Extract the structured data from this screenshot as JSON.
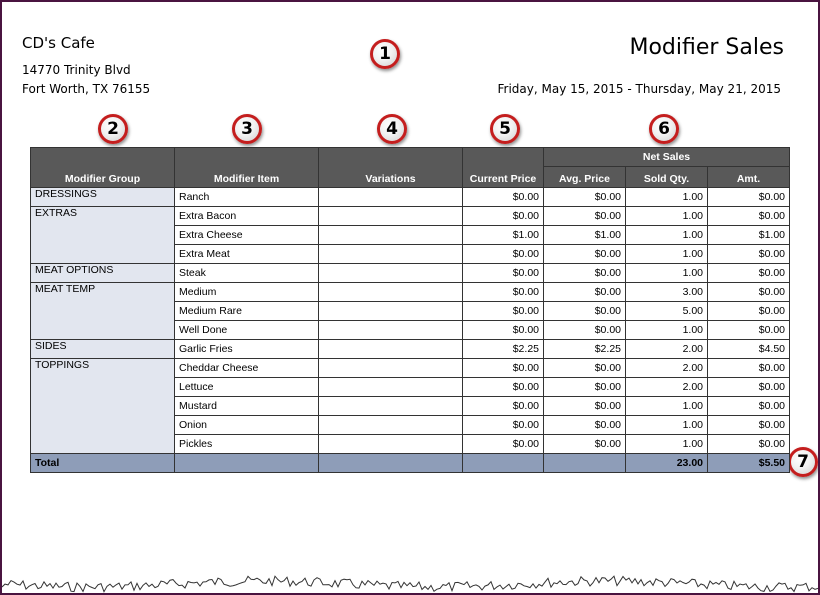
{
  "header": {
    "cafe_name": "CD's Cafe",
    "address_line1": "14770 Trinity Blvd",
    "address_line2": "Fort Worth, TX 76155",
    "report_title": "Modifier Sales",
    "date_range": "Friday, May 15, 2015 - Thursday, May 21, 2015"
  },
  "badges": [
    "1",
    "2",
    "3",
    "4",
    "5",
    "6",
    "7"
  ],
  "columns": {
    "group": "Modifier Group",
    "item": "Modifier Item",
    "variations": "Variations",
    "current_price": "Current Price",
    "net_sales": "Net Sales",
    "avg_price": "Avg. Price",
    "sold_qty": "Sold Qty.",
    "amt": "Amt."
  },
  "groups": [
    {
      "name": "DRESSINGS",
      "rows": [
        {
          "item": "Ranch",
          "variations": "",
          "current_price": "$0.00",
          "avg_price": "$0.00",
          "sold_qty": "1.00",
          "amt": "$0.00"
        }
      ]
    },
    {
      "name": "EXTRAS",
      "rows": [
        {
          "item": "Extra Bacon",
          "variations": "",
          "current_price": "$0.00",
          "avg_price": "$0.00",
          "sold_qty": "1.00",
          "amt": "$0.00"
        },
        {
          "item": "Extra Cheese",
          "variations": "",
          "current_price": "$1.00",
          "avg_price": "$1.00",
          "sold_qty": "1.00",
          "amt": "$1.00"
        },
        {
          "item": "Extra Meat",
          "variations": "",
          "current_price": "$0.00",
          "avg_price": "$0.00",
          "sold_qty": "1.00",
          "amt": "$0.00"
        }
      ]
    },
    {
      "name": "MEAT OPTIONS",
      "rows": [
        {
          "item": "Steak",
          "variations": "",
          "current_price": "$0.00",
          "avg_price": "$0.00",
          "sold_qty": "1.00",
          "amt": "$0.00"
        }
      ]
    },
    {
      "name": "MEAT TEMP",
      "rows": [
        {
          "item": "Medium",
          "variations": "",
          "current_price": "$0.00",
          "avg_price": "$0.00",
          "sold_qty": "3.00",
          "amt": "$0.00"
        },
        {
          "item": "Medium Rare",
          "variations": "",
          "current_price": "$0.00",
          "avg_price": "$0.00",
          "sold_qty": "5.00",
          "amt": "$0.00"
        },
        {
          "item": "Well Done",
          "variations": "",
          "current_price": "$0.00",
          "avg_price": "$0.00",
          "sold_qty": "1.00",
          "amt": "$0.00"
        }
      ]
    },
    {
      "name": "SIDES",
      "rows": [
        {
          "item": "Garlic Fries",
          "variations": "",
          "current_price": "$2.25",
          "avg_price": "$2.25",
          "sold_qty": "2.00",
          "amt": "$4.50"
        }
      ]
    },
    {
      "name": "TOPPINGS",
      "rows": [
        {
          "item": "Cheddar Cheese",
          "variations": "",
          "current_price": "$0.00",
          "avg_price": "$0.00",
          "sold_qty": "2.00",
          "amt": "$0.00"
        },
        {
          "item": "Lettuce",
          "variations": "",
          "current_price": "$0.00",
          "avg_price": "$0.00",
          "sold_qty": "2.00",
          "amt": "$0.00"
        },
        {
          "item": "Mustard",
          "variations": "",
          "current_price": "$0.00",
          "avg_price": "$0.00",
          "sold_qty": "1.00",
          "amt": "$0.00"
        },
        {
          "item": "Onion",
          "variations": "",
          "current_price": "$0.00",
          "avg_price": "$0.00",
          "sold_qty": "1.00",
          "amt": "$0.00"
        },
        {
          "item": "Pickles",
          "variations": "",
          "current_price": "$0.00",
          "avg_price": "$0.00",
          "sold_qty": "1.00",
          "amt": "$0.00"
        }
      ]
    }
  ],
  "total": {
    "label": "Total",
    "sold_qty": "23.00",
    "amt": "$5.50"
  },
  "colors": {
    "header_bg": "#595959",
    "group_bg": "#e2e6ef",
    "total_bg": "#8e9db8",
    "badge_ring": "#c41e1e",
    "frame": "#4a1440"
  }
}
